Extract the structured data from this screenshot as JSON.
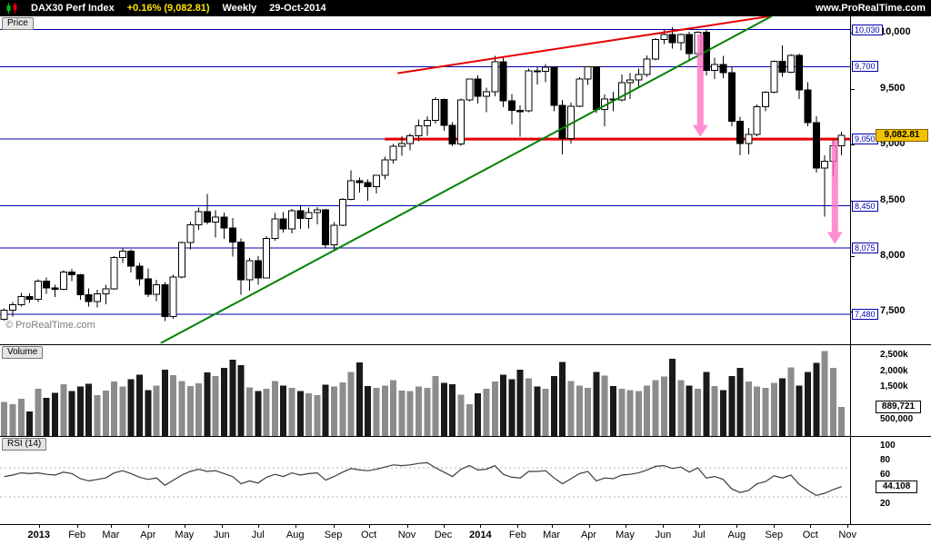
{
  "top_bar": {
    "instrument": "DAX30 Perf Index",
    "change": "+0.16% (9,082.81)",
    "timeframe": "Weekly",
    "date": "29-Oct-2014",
    "site": "www.ProRealTime.com"
  },
  "panels": {
    "price": {
      "tab": "Price",
      "copyright": "© ProRealTime.com"
    },
    "volume": {
      "tab": "Volume"
    },
    "rsi": {
      "tab": "RSI (14)"
    }
  },
  "colors": {
    "accent_yellow": "#ffe400",
    "level_blue": "#0000aa",
    "red": "#e60000",
    "green": "#008000",
    "pink": "#ff6ec7",
    "bar_up": "#8c8c8c",
    "bar_down": "#1a1a1a",
    "rsi_line": "#3c3c3c",
    "current_box_yellow": "#f2c300"
  },
  "chart_data": {
    "type": "candlestick",
    "title": "DAX30 Perf Index Weekly",
    "last_date": "29-Oct-2014",
    "price_axis": {
      "range": [
        7210,
        10150
      ],
      "ticks": [
        {
          "label": "10,000",
          "price": 10000
        },
        {
          "label": "9,500",
          "price": 9500
        },
        {
          "label": "9,000",
          "price": 9000
        },
        {
          "label": "8,500",
          "price": 8500
        },
        {
          "label": "8,000",
          "price": 8000
        },
        {
          "label": "7,500",
          "price": 7500
        }
      ],
      "levels": [
        {
          "label": "10,030",
          "price": 10030
        },
        {
          "label": "9,700",
          "price": 9700
        },
        {
          "label": "9,050",
          "price": 9050
        },
        {
          "label": "8,450",
          "price": 8450
        },
        {
          "label": "8,075",
          "price": 8075
        },
        {
          "label": "7,480",
          "price": 7480
        }
      ],
      "current": {
        "label": "9,082.81",
        "price": 9082.81
      }
    },
    "candles": [
      [
        7435,
        7530,
        7420,
        7517
      ],
      [
        7517,
        7590,
        7460,
        7565
      ],
      [
        7565,
        7672,
        7550,
        7636
      ],
      [
        7636,
        7665,
        7580,
        7612
      ],
      [
        7612,
        7792,
        7588,
        7776
      ],
      [
        7776,
        7810,
        7664,
        7715
      ],
      [
        7715,
        7745,
        7632,
        7702
      ],
      [
        7702,
        7872,
        7695,
        7858
      ],
      [
        7858,
        7885,
        7776,
        7834
      ],
      [
        7834,
        7843,
        7610,
        7652
      ],
      [
        7652,
        7712,
        7550,
        7594
      ],
      [
        7594,
        7700,
        7538,
        7662
      ],
      [
        7662,
        7745,
        7568,
        7708
      ],
      [
        7708,
        8000,
        7700,
        7986
      ],
      [
        7986,
        8075,
        7940,
        8043
      ],
      [
        8043,
        8060,
        7852,
        7911
      ],
      [
        7911,
        7940,
        7735,
        7795
      ],
      [
        7795,
        7890,
        7632,
        7659
      ],
      [
        7659,
        7790,
        7595,
        7745
      ],
      [
        7745,
        7768,
        7418,
        7460
      ],
      [
        7460,
        7835,
        7440,
        7814
      ],
      [
        7814,
        8130,
        7800,
        8122
      ],
      [
        8122,
        8310,
        8060,
        8279
      ],
      [
        8279,
        8435,
        8235,
        8398
      ],
      [
        8398,
        8557,
        8285,
        8306
      ],
      [
        8306,
        8410,
        8166,
        8349
      ],
      [
        8349,
        8390,
        8155,
        8254
      ],
      [
        8254,
        8340,
        7995,
        8128
      ],
      [
        8128,
        8160,
        7655,
        7789
      ],
      [
        7789,
        7985,
        7692,
        7959
      ],
      [
        7959,
        8000,
        7745,
        7806
      ],
      [
        7806,
        8180,
        7800,
        8160
      ],
      [
        8160,
        8385,
        8140,
        8332
      ],
      [
        8332,
        8395,
        8210,
        8245
      ],
      [
        8245,
        8425,
        8205,
        8408
      ],
      [
        8408,
        8460,
        8245,
        8338
      ],
      [
        8338,
        8435,
        8248,
        8392
      ],
      [
        8392,
        8440,
        8285,
        8417
      ],
      [
        8417,
        8422,
        8076,
        8103
      ],
      [
        8103,
        8305,
        8060,
        8276
      ],
      [
        8276,
        8520,
        8270,
        8509
      ],
      [
        8509,
        8770,
        8500,
        8675
      ],
      [
        8675,
        8705,
        8570,
        8661
      ],
      [
        8661,
        8690,
        8495,
        8623
      ],
      [
        8623,
        8730,
        8560,
        8725
      ],
      [
        8725,
        8890,
        8690,
        8865
      ],
      [
        8865,
        9005,
        8830,
        8986
      ],
      [
        8986,
        9075,
        8900,
        9008
      ],
      [
        9008,
        9100,
        8950,
        9078
      ],
      [
        9078,
        9225,
        9032,
        9168
      ],
      [
        9168,
        9255,
        9080,
        9219
      ],
      [
        9219,
        9425,
        9190,
        9405
      ],
      [
        9405,
        9415,
        9125,
        9172
      ],
      [
        9172,
        9200,
        8984,
        9006
      ],
      [
        9006,
        9415,
        8990,
        9400
      ],
      [
        9400,
        9594,
        9390,
        9589
      ],
      [
        9589,
        9620,
        9370,
        9435
      ],
      [
        9435,
        9510,
        9290,
        9473
      ],
      [
        9473,
        9794,
        9433,
        9743
      ],
      [
        9743,
        9780,
        9335,
        9392
      ],
      [
        9392,
        9455,
        9180,
        9306
      ],
      [
        9306,
        9350,
        9070,
        9302
      ],
      [
        9302,
        9680,
        9290,
        9662
      ],
      [
        9662,
        9700,
        9540,
        9657
      ],
      [
        9657,
        9721,
        9560,
        9692
      ],
      [
        9692,
        9698,
        9300,
        9351
      ],
      [
        9351,
        9400,
        8913,
        9056
      ],
      [
        9056,
        9375,
        9010,
        9343
      ],
      [
        9343,
        9604,
        9335,
        9588
      ],
      [
        9588,
        9700,
        9534,
        9696
      ],
      [
        9696,
        9700,
        9282,
        9315
      ],
      [
        9315,
        9448,
        9166,
        9410
      ],
      [
        9410,
        9475,
        9300,
        9401
      ],
      [
        9401,
        9627,
        9390,
        9556
      ],
      [
        9556,
        9640,
        9407,
        9581
      ],
      [
        9581,
        9680,
        9520,
        9629
      ],
      [
        9629,
        9799,
        9610,
        9768
      ],
      [
        9768,
        9955,
        9755,
        9943
      ],
      [
        9943,
        10033,
        9900,
        9987
      ],
      [
        9987,
        10051,
        9860,
        9913
      ],
      [
        9913,
        9995,
        9845,
        9987
      ],
      [
        9987,
        10010,
        9750,
        9815
      ],
      [
        9815,
        10015,
        9790,
        10009
      ],
      [
        10009,
        10030,
        9620,
        9666
      ],
      [
        9666,
        9780,
        9590,
        9720
      ],
      [
        9720,
        9795,
        9595,
        9644
      ],
      [
        9644,
        9700,
        9165,
        9210
      ],
      [
        9210,
        9250,
        8903,
        9009
      ],
      [
        9009,
        9150,
        8914,
        9093
      ],
      [
        9093,
        9360,
        9075,
        9339
      ],
      [
        9339,
        9480,
        9300,
        9470
      ],
      [
        9470,
        9755,
        9460,
        9747
      ],
      [
        9747,
        9891,
        9608,
        9651
      ],
      [
        9651,
        9810,
        9640,
        9799
      ],
      [
        9799,
        9815,
        9407,
        9490
      ],
      [
        9490,
        9560,
        9165,
        9196
      ],
      [
        9196,
        9255,
        8750,
        8789
      ],
      [
        8789,
        8905,
        8354,
        8850
      ],
      [
        8850,
        9045,
        8718,
        8988
      ],
      [
        8988,
        9115,
        8903,
        9083
      ]
    ],
    "volume_axis": {
      "range": [
        0,
        2800
      ],
      "unit": "k",
      "ticks": [
        {
          "label": "2,500k",
          "value": 2500
        },
        {
          "label": "2,000k",
          "value": 2000
        },
        {
          "label": "1,500k",
          "value": 1500
        },
        {
          "label": "500,000",
          "value": 500
        }
      ],
      "current": {
        "label": "889,721",
        "value": 889.721
      }
    },
    "volume_k": [
      1050,
      980,
      1150,
      760,
      1450,
      1180,
      1325,
      1600,
      1380,
      1520,
      1610,
      1260,
      1400,
      1680,
      1520,
      1750,
      1890,
      1420,
      1560,
      2050,
      1880,
      1700,
      1540,
      1620,
      1960,
      1850,
      2100,
      2350,
      2180,
      1500,
      1380,
      1450,
      1700,
      1560,
      1480,
      1390,
      1310,
      1260,
      1580,
      1520,
      1650,
      1980,
      2270,
      1540,
      1480,
      1560,
      1720,
      1400,
      1380,
      1520,
      1480,
      1850,
      1640,
      1600,
      1280,
      980,
      1320,
      1450,
      1680,
      1890,
      1750,
      2050,
      1780,
      1520,
      1460,
      1850,
      2280,
      1700,
      1560,
      1480,
      1980,
      1860,
      1540,
      1460,
      1420,
      1380,
      1560,
      1720,
      1840,
      2380,
      1720,
      1560,
      1450,
      1980,
      1540,
      1420,
      1850,
      2100,
      1680,
      1520,
      1480,
      1640,
      1780,
      2120,
      1560,
      1980,
      2260,
      2620,
      2100,
      890
    ],
    "rsi_axis": {
      "range": [
        0,
        100
      ],
      "ticks": [
        {
          "label": "100",
          "value": 100
        },
        {
          "label": "80",
          "value": 80
        },
        {
          "label": "60",
          "value": 60
        },
        {
          "label": "20",
          "value": 20
        }
      ],
      "guides": [
        70,
        30
      ],
      "current": {
        "label": "44.108",
        "value": 44.108
      }
    },
    "rsi": [
      58,
      60,
      63,
      62,
      63,
      61,
      60,
      64,
      62,
      55,
      52,
      54,
      56,
      63,
      66,
      62,
      57,
      54,
      56,
      46,
      53,
      60,
      65,
      68,
      65,
      66,
      62,
      58,
      48,
      52,
      49,
      57,
      61,
      58,
      63,
      60,
      62,
      63,
      53,
      58,
      64,
      69,
      67,
      66,
      68,
      71,
      74,
      73,
      74,
      76,
      77,
      70,
      64,
      58,
      68,
      73,
      67,
      68,
      73,
      61,
      57,
      56,
      65,
      65,
      66,
      56,
      48,
      55,
      62,
      65,
      52,
      56,
      55,
      60,
      61,
      63,
      67,
      72,
      73,
      69,
      71,
      64,
      70,
      56,
      58,
      54,
      41,
      36,
      39,
      48,
      51,
      59,
      56,
      60,
      47,
      39,
      32,
      35,
      40,
      44.108
    ],
    "trendlines": [
      {
        "name": "rising-support-trendline",
        "color": "#008000",
        "i1": 18.5,
        "p1": 7220,
        "i2": 90.7,
        "p2": 10150
      },
      {
        "name": "rising-resistance-trendline",
        "color": "#e60000",
        "i1": 46.5,
        "p1": 9640,
        "i2": 90.4,
        "p2": 10150
      }
    ],
    "red_hline": {
      "price": 9050,
      "from_index": 45,
      "color": "#e60000"
    },
    "arrows": [
      {
        "index": 82.3,
        "from": 9990,
        "to": 9070
      },
      {
        "index": 98.2,
        "from": 9035,
        "to": 8110
      }
    ],
    "x_axis": {
      "labels": [
        {
          "label": "2013",
          "index": 4.1,
          "bold": true
        },
        {
          "label": "Feb",
          "index": 8.6
        },
        {
          "label": "Mar",
          "index": 12.6
        },
        {
          "label": "Apr",
          "index": 17.0
        },
        {
          "label": "May",
          "index": 21.3
        },
        {
          "label": "Jun",
          "index": 25.7
        },
        {
          "label": "Jul",
          "index": 30.0
        },
        {
          "label": "Aug",
          "index": 34.4
        },
        {
          "label": "Sep",
          "index": 38.9
        },
        {
          "label": "Oct",
          "index": 43.1
        },
        {
          "label": "Nov",
          "index": 47.6
        },
        {
          "label": "Dec",
          "index": 51.9
        },
        {
          "label": "2014",
          "index": 56.3,
          "bold": true
        },
        {
          "label": "Feb",
          "index": 60.7
        },
        {
          "label": "Mar",
          "index": 64.7
        },
        {
          "label": "Apr",
          "index": 69.1
        },
        {
          "label": "May",
          "index": 73.4
        },
        {
          "label": "Jun",
          "index": 77.9
        },
        {
          "label": "Jul",
          "index": 82.1
        },
        {
          "label": "Aug",
          "index": 86.6
        },
        {
          "label": "Sep",
          "index": 91.0
        },
        {
          "label": "Oct",
          "index": 95.3
        },
        {
          "label": "Nov",
          "index": 99.7
        }
      ]
    }
  }
}
